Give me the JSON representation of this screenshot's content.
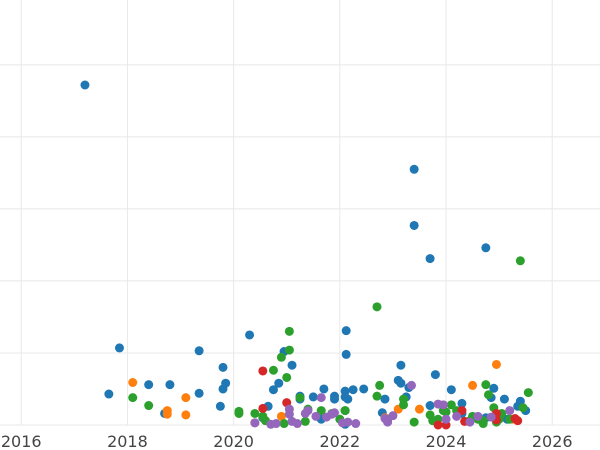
{
  "chart_data": {
    "type": "scatter",
    "title": "",
    "xlabel": "",
    "ylabel": "",
    "xlim": [
      2015.6,
      2026.9
    ],
    "ylim": [
      0,
      590
    ],
    "xticks": [
      2016,
      2018,
      2020,
      2022,
      2024,
      2026
    ],
    "xtick_labels": [
      "2016",
      "2018",
      "2020",
      "2022",
      "2024",
      "2026"
    ],
    "yticks": [
      0,
      100,
      200,
      300,
      400,
      500
    ],
    "grid": true,
    "series": [
      {
        "color": "#1f77b4",
        "points": [
          [
            2017.2,
            472
          ],
          [
            2017.65,
            43
          ],
          [
            2017.85,
            107
          ],
          [
            2018.4,
            56
          ],
          [
            2018.7,
            16
          ],
          [
            2018.8,
            56
          ],
          [
            2019.35,
            103
          ],
          [
            2019.35,
            44
          ],
          [
            2019.75,
            26
          ],
          [
            2019.8,
            50
          ],
          [
            2019.8,
            80
          ],
          [
            2019.85,
            58
          ],
          [
            2020.3,
            125
          ],
          [
            2020.55,
            10
          ],
          [
            2020.65,
            26
          ],
          [
            2020.75,
            49
          ],
          [
            2020.85,
            58
          ],
          [
            2020.95,
            102
          ],
          [
            2021.1,
            83
          ],
          [
            2021.25,
            40
          ],
          [
            2021.25,
            36
          ],
          [
            2021.5,
            39
          ],
          [
            2021.65,
            8
          ],
          [
            2021.7,
            50
          ],
          [
            2021.9,
            40
          ],
          [
            2021.9,
            36
          ],
          [
            2022.1,
            47
          ],
          [
            2022.1,
            39
          ],
          [
            2022.1,
            20
          ],
          [
            2022.1,
            1
          ],
          [
            2022.12,
            131
          ],
          [
            2022.12,
            98
          ],
          [
            2022.15,
            36
          ],
          [
            2022.25,
            49
          ],
          [
            2022.45,
            50
          ],
          [
            2022.8,
            17
          ],
          [
            2022.85,
            36
          ],
          [
            2023.1,
            62
          ],
          [
            2023.15,
            58
          ],
          [
            2023.15,
            83
          ],
          [
            2023.25,
            39
          ],
          [
            2023.3,
            52
          ],
          [
            2023.4,
            355
          ],
          [
            2023.4,
            277
          ],
          [
            2023.7,
            231
          ],
          [
            2023.8,
            70
          ],
          [
            2023.7,
            27
          ],
          [
            2024.1,
            49
          ],
          [
            2024.3,
            30
          ],
          [
            2024.3,
            16
          ],
          [
            2024.75,
            10
          ],
          [
            2024.75,
            246
          ],
          [
            2024.85,
            38
          ],
          [
            2024.9,
            51
          ],
          [
            2025.1,
            36
          ],
          [
            2025.35,
            26
          ],
          [
            2025.4,
            33
          ],
          [
            2025.15,
            8
          ],
          [
            2025.5,
            20
          ]
        ]
      },
      {
        "color": "#ff7f0e",
        "points": [
          [
            2018.1,
            59
          ],
          [
            2018.75,
            20
          ],
          [
            2018.75,
            15
          ],
          [
            2019.1,
            38
          ],
          [
            2019.1,
            14
          ],
          [
            2020.4,
            3
          ],
          [
            2020.9,
            12
          ],
          [
            2022.85,
            10
          ],
          [
            2023.1,
            22
          ],
          [
            2023.5,
            22
          ],
          [
            2024.5,
            55
          ],
          [
            2024.95,
            84
          ],
          [
            2025.25,
            8
          ]
        ]
      },
      {
        "color": "#2ca02c",
        "points": [
          [
            2018.1,
            38
          ],
          [
            2018.4,
            27
          ],
          [
            2020.1,
            19
          ],
          [
            2020.1,
            16
          ],
          [
            2020.4,
            16
          ],
          [
            2020.55,
            12
          ],
          [
            2020.6,
            6
          ],
          [
            2020.75,
            76
          ],
          [
            2020.9,
            94
          ],
          [
            2020.95,
            2
          ],
          [
            2021.0,
            66
          ],
          [
            2021.05,
            130
          ],
          [
            2021.05,
            104
          ],
          [
            2021.25,
            38
          ],
          [
            2021.35,
            5
          ],
          [
            2021.4,
            22
          ],
          [
            2021.65,
            20
          ],
          [
            2021.85,
            16
          ],
          [
            2022.0,
            8
          ],
          [
            2022.1,
            20
          ],
          [
            2022.7,
            40
          ],
          [
            2022.7,
            164
          ],
          [
            2022.75,
            55
          ],
          [
            2022.9,
            8
          ],
          [
            2023.2,
            28
          ],
          [
            2023.2,
            36
          ],
          [
            2023.4,
            4
          ],
          [
            2023.7,
            14
          ],
          [
            2023.75,
            6
          ],
          [
            2023.85,
            8
          ],
          [
            2023.95,
            20
          ],
          [
            2024.0,
            18
          ],
          [
            2024.1,
            28
          ],
          [
            2024.2,
            20
          ],
          [
            2024.45,
            6
          ],
          [
            2024.5,
            12
          ],
          [
            2024.6,
            8
          ],
          [
            2024.7,
            6
          ],
          [
            2024.7,
            2
          ],
          [
            2024.75,
            56
          ],
          [
            2024.8,
            42
          ],
          [
            2024.9,
            24
          ],
          [
            2024.95,
            4
          ],
          [
            2025.0,
            8
          ],
          [
            2025.05,
            16
          ],
          [
            2025.2,
            8
          ],
          [
            2025.4,
            228
          ],
          [
            2025.45,
            24
          ],
          [
            2025.55,
            45
          ]
        ]
      },
      {
        "color": "#d62728",
        "points": [
          [
            2020.55,
            75
          ],
          [
            2020.55,
            23
          ],
          [
            2021.0,
            31
          ],
          [
            2023.85,
            0
          ],
          [
            2024.0,
            0
          ],
          [
            2024.3,
            20
          ],
          [
            2024.35,
            5
          ],
          [
            2024.95,
            16
          ],
          [
            2024.95,
            7
          ],
          [
            2025.3,
            9
          ],
          [
            2025.35,
            6
          ]
        ]
      },
      {
        "color": "#9467bd",
        "points": [
          [
            2020.4,
            3
          ],
          [
            2020.7,
            1
          ],
          [
            2020.8,
            2
          ],
          [
            2021.05,
            22
          ],
          [
            2021.05,
            15
          ],
          [
            2021.1,
            5
          ],
          [
            2021.2,
            2
          ],
          [
            2021.35,
            16
          ],
          [
            2021.4,
            20
          ],
          [
            2021.55,
            12
          ],
          [
            2021.65,
            38
          ],
          [
            2021.75,
            11
          ],
          [
            2021.85,
            15
          ],
          [
            2021.9,
            17
          ],
          [
            2022.05,
            3
          ],
          [
            2022.15,
            4
          ],
          [
            2022.3,
            2
          ],
          [
            2022.85,
            9
          ],
          [
            2022.9,
            4
          ],
          [
            2023.0,
            13
          ],
          [
            2023.35,
            55
          ],
          [
            2023.85,
            29
          ],
          [
            2023.95,
            28
          ],
          [
            2024.0,
            8
          ],
          [
            2024.2,
            12
          ],
          [
            2024.45,
            4
          ],
          [
            2024.6,
            12
          ],
          [
            2024.85,
            11
          ],
          [
            2025.2,
            20
          ]
        ]
      }
    ]
  }
}
